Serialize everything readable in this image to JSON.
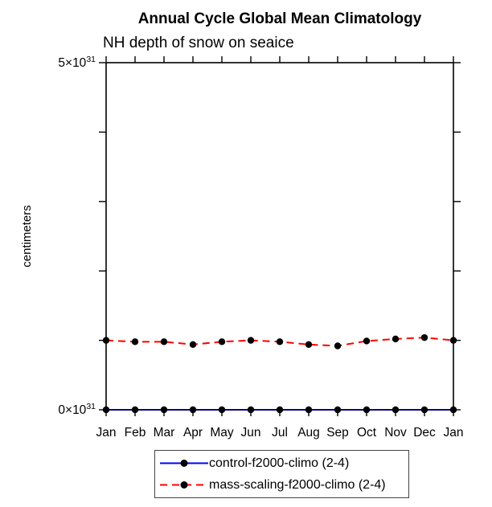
{
  "title": "Annual Cycle Global Mean Climatology",
  "subtitle": "NH depth of snow on seaice",
  "chart_data": {
    "type": "line",
    "title": "Annual Cycle Global Mean Climatology",
    "subtitle": "NH depth of snow on seaice",
    "categories": [
      "Jan",
      "Feb",
      "Mar",
      "Apr",
      "May",
      "Jun",
      "Jul",
      "Aug",
      "Sep",
      "Oct",
      "Nov",
      "Dec",
      "Jan"
    ],
    "xlabel": "",
    "ylabel": "centimeters",
    "ylim": [
      0,
      5
    ],
    "y_unit_exponent": "10^31",
    "y_ticks": [
      {
        "value": 0,
        "label": "0×10",
        "exp": "31"
      },
      {
        "value": 5,
        "label": "5×10",
        "exp": "31"
      }
    ],
    "y_minor_ticks": [
      1,
      2,
      3,
      4
    ],
    "grid": false,
    "legend_position": "bottom-center",
    "axis_color": "#000000",
    "marker": "filled-circle",
    "series": [
      {
        "name": "control-f2000-climo (2-4)",
        "color": "#0000ff",
        "style": "solid",
        "dash": "none",
        "marker_color": "#000000",
        "values": [
          0,
          0,
          0,
          0,
          0,
          0,
          0,
          0,
          0,
          0,
          0,
          0,
          0
        ]
      },
      {
        "name": "mass-scaling-f2000-climo (2-4)",
        "color": "#ff0000",
        "style": "dashed",
        "dash": "9,6",
        "marker_color": "#000000",
        "values": [
          1.0,
          0.98,
          0.98,
          0.94,
          0.98,
          1.0,
          0.98,
          0.94,
          0.92,
          0.99,
          1.02,
          1.04,
          1.0
        ]
      }
    ]
  }
}
